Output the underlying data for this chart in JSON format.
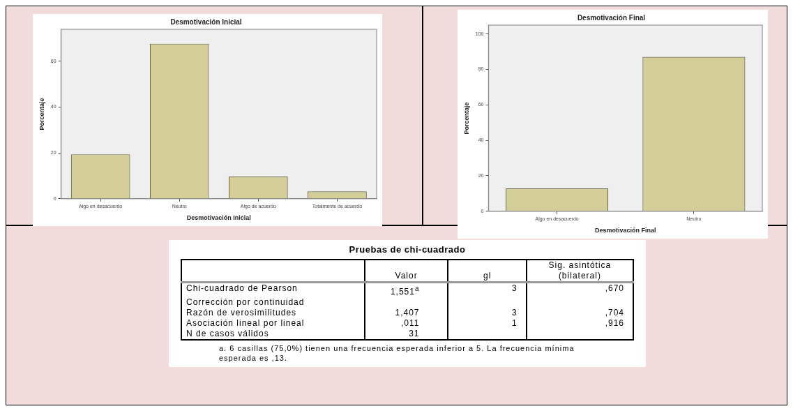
{
  "chart_data": [
    {
      "type": "bar",
      "title": "Desmotivación Inicial",
      "xlabel": "Desmotivación Inicial",
      "ylabel": "Porcentaje",
      "categories": [
        "Algo en desacuerdo",
        "Neutro",
        "Algo de acuerdo",
        "Totalmente de acuerdo"
      ],
      "values": [
        19.4,
        67.7,
        9.7,
        3.2
      ],
      "color": "#d3cd97",
      "ylim": [
        0,
        74
      ],
      "yticks": [
        0,
        20,
        40,
        60
      ]
    },
    {
      "type": "bar",
      "title": "Desmotivación Final",
      "xlabel": "Desmotivación Final",
      "ylabel": "Porcentaje",
      "categories": [
        "Algo en desacuerdo",
        "Neutro"
      ],
      "values": [
        12.9,
        87.1
      ],
      "color": "#d3cd97",
      "ylim": [
        0,
        105
      ],
      "yticks": [
        0,
        20,
        40,
        60,
        80,
        100
      ]
    },
    {
      "type": "other",
      "title": "Pruebas de chi-cuadrado",
      "categories": [
        null,
        "Valor",
        "gl",
        "Sig. asintótica (bilateral)"
      ],
      "y_categories": [
        "Chi-cuadrado de Pearson",
        "Corrección por continuidad",
        "Razón de verosimilitudes",
        "Asociación lineal por lineal",
        "N de casos válidos"
      ],
      "cell_labels": [
        [
          "1,551$^{a}$",
          "3",
          ",670"
        ],
        [
          null,
          null,
          null
        ],
        [
          "1,407",
          "3",
          ",704"
        ],
        [
          ",011",
          "1",
          ",916"
        ],
        [
          "31",
          null,
          null
        ]
      ],
      "annotations": [
        "a. 6 casillas (75,0%) tienen una frecuencia esperada inferior a 5. La frecuencia mínima esperada es ,13."
      ]
    }
  ]
}
